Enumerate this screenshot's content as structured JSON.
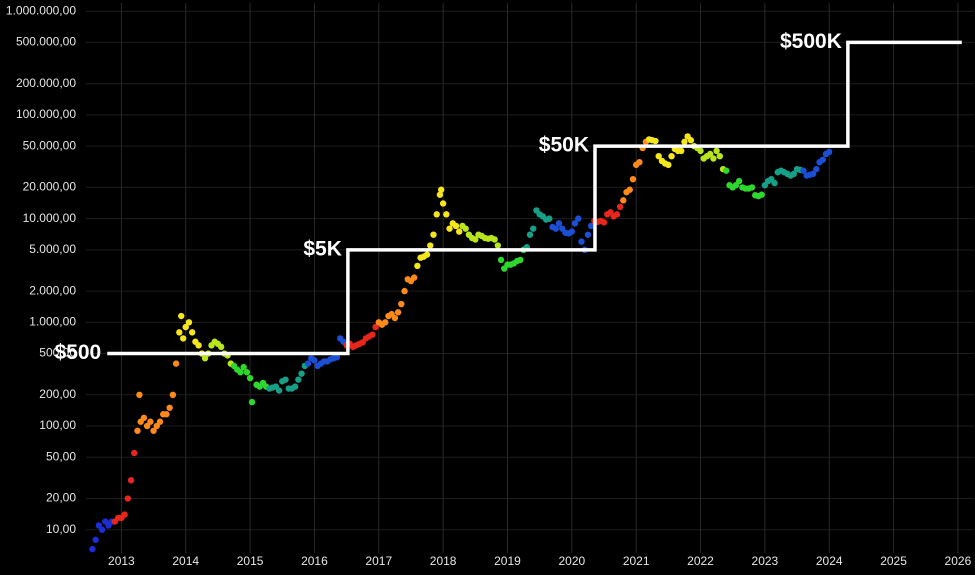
{
  "chart_data": {
    "type": "scatter",
    "log_y": true,
    "grid": true,
    "xlim": [
      2012.45,
      2026.25
    ],
    "xticks": [
      2013,
      2014,
      2015,
      2016,
      2017,
      2018,
      2019,
      2020,
      2021,
      2022,
      2023,
      2024,
      2025,
      2026
    ],
    "ylim": [
      4,
      1200000
    ],
    "yticks": [
      {
        "value": 10,
        "label": "10,00"
      },
      {
        "value": 20,
        "label": "20,00"
      },
      {
        "value": 50,
        "label": "50,00"
      },
      {
        "value": 100,
        "label": "100,00"
      },
      {
        "value": 200,
        "label": "200,00"
      },
      {
        "value": 500,
        "label": "500,00"
      },
      {
        "value": 1000,
        "label": "1.000,00"
      },
      {
        "value": 2000,
        "label": "2.000,00"
      },
      {
        "value": 5000,
        "label": "5.000,00"
      },
      {
        "value": 10000,
        "label": "10.000,00"
      },
      {
        "value": 20000,
        "label": "20.000,00"
      },
      {
        "value": 50000,
        "label": "50.000,00"
      },
      {
        "value": 100000,
        "label": "100.000,00"
      },
      {
        "value": 200000,
        "label": "200.000,00"
      },
      {
        "value": 500000,
        "label": "500.000,00"
      },
      {
        "value": 1000000,
        "label": "1.000.000,00"
      }
    ],
    "series": [
      {
        "color": "#1c2fd6",
        "x": [
          2012.55,
          2012.6,
          2012.65,
          2012.7,
          2012.75,
          2012.8,
          2012.85
        ],
        "values": [
          6.5,
          8,
          11,
          10,
          12,
          11,
          12
        ]
      },
      {
        "color": "#e8261c",
        "x": [
          2012.9,
          2012.95,
          2013.0,
          2013.05,
          2013.1,
          2013.15,
          2013.2
        ],
        "values": [
          12,
          13,
          13,
          14,
          20,
          30,
          55
        ]
      },
      {
        "color": "#ff8a1a",
        "x": [
          2013.25,
          2013.28,
          2013.3,
          2013.35,
          2013.4,
          2013.45,
          2013.5,
          2013.55,
          2013.6,
          2013.65,
          2013.7,
          2013.75,
          2013.8,
          2013.85
        ],
        "values": [
          90,
          200,
          110,
          120,
          100,
          110,
          90,
          100,
          110,
          130,
          130,
          150,
          200,
          400
        ]
      },
      {
        "color": "#f5e61c",
        "x": [
          2013.9,
          2013.93,
          2013.96,
          2014.0,
          2014.05,
          2014.1,
          2014.15,
          2014.2,
          2014.25
        ],
        "values": [
          800,
          1150,
          700,
          900,
          1000,
          800,
          650,
          600,
          500
        ]
      },
      {
        "color": "#b8e61c",
        "x": [
          2014.3,
          2014.35,
          2014.4,
          2014.45,
          2014.5,
          2014.55,
          2014.6,
          2014.65,
          2014.7
        ],
        "values": [
          450,
          500,
          600,
          650,
          620,
          580,
          500,
          480,
          400
        ]
      },
      {
        "color": "#2ed62e",
        "x": [
          2014.75,
          2014.8,
          2014.85,
          2014.9,
          2014.95,
          2015.0,
          2015.03,
          2015.1,
          2015.15,
          2015.2,
          2015.25
        ],
        "values": [
          380,
          350,
          330,
          370,
          330,
          290,
          170,
          250,
          240,
          260,
          240
        ]
      },
      {
        "color": "#17a088",
        "x": [
          2015.3,
          2015.35,
          2015.4,
          2015.45,
          2015.5,
          2015.55,
          2015.6,
          2015.65,
          2015.7,
          2015.75,
          2015.8,
          2015.85
        ],
        "values": [
          230,
          235,
          240,
          220,
          270,
          280,
          230,
          230,
          240,
          280,
          320,
          380
        ]
      },
      {
        "color": "#1c4fd6",
        "x": [
          2015.9,
          2015.95,
          2016.0,
          2016.05,
          2016.1,
          2016.15,
          2016.2,
          2016.25,
          2016.3,
          2016.35,
          2016.4,
          2016.45
        ],
        "values": [
          400,
          450,
          430,
          380,
          400,
          420,
          420,
          440,
          450,
          460,
          700,
          650
        ]
      },
      {
        "color": "#e8261c",
        "x": [
          2016.5,
          2016.55,
          2016.6,
          2016.65,
          2016.7,
          2016.75,
          2016.8,
          2016.85,
          2016.9,
          2016.95
        ],
        "values": [
          600,
          620,
          580,
          600,
          620,
          640,
          700,
          730,
          760,
          900
        ]
      },
      {
        "color": "#ff8a1a",
        "x": [
          2017.0,
          2017.05,
          2017.1,
          2017.15,
          2017.2,
          2017.25,
          2017.3,
          2017.35,
          2017.4,
          2017.45,
          2017.5,
          2017.55
        ],
        "values": [
          1000,
          950,
          1000,
          1150,
          1200,
          1100,
          1250,
          1500,
          2000,
          2600,
          2500,
          2700
        ]
      },
      {
        "color": "#f5e61c",
        "x": [
          2017.6,
          2017.65,
          2017.7,
          2017.75,
          2017.8,
          2017.85,
          2017.9,
          2017.95,
          2017.97,
          2018.0,
          2018.05,
          2018.1,
          2018.15,
          2018.2,
          2018.25
        ],
        "values": [
          3500,
          4200,
          4300,
          4500,
          5500,
          7000,
          11000,
          17000,
          19000,
          14000,
          11000,
          8000,
          9000,
          8500,
          7500
        ]
      },
      {
        "color": "#b8e61c",
        "x": [
          2018.3,
          2018.35,
          2018.4,
          2018.45,
          2018.5,
          2018.55,
          2018.6,
          2018.65,
          2018.7,
          2018.75,
          2018.8,
          2018.85
        ],
        "values": [
          8500,
          8000,
          7000,
          6500,
          6300,
          7000,
          6800,
          6500,
          6400,
          6500,
          6300,
          5500
        ]
      },
      {
        "color": "#2ed62e",
        "x": [
          2018.9,
          2018.95,
          2019.0,
          2019.05,
          2019.1,
          2019.15,
          2019.2,
          2019.25
        ],
        "values": [
          4000,
          3300,
          3600,
          3600,
          3700,
          3900,
          4000,
          5000
        ]
      },
      {
        "color": "#17a088",
        "x": [
          2019.3,
          2019.35,
          2019.4,
          2019.45,
          2019.5,
          2019.55,
          2019.6,
          2019.65
        ],
        "values": [
          5300,
          7000,
          8000,
          12000,
          11000,
          10500,
          9800,
          10000
        ]
      },
      {
        "color": "#1c4fd6",
        "x": [
          2019.7,
          2019.75,
          2019.8,
          2019.85,
          2019.9,
          2019.95,
          2020.0,
          2020.05,
          2020.1,
          2020.15,
          2020.2,
          2020.25,
          2020.3
        ],
        "values": [
          8300,
          8000,
          9000,
          8000,
          7300,
          7200,
          7500,
          9000,
          10000,
          6000,
          5000,
          7000,
          8500
        ]
      },
      {
        "color": "#e8261c",
        "x": [
          2020.35,
          2020.4,
          2020.45,
          2020.5,
          2020.55,
          2020.6,
          2020.65,
          2020.7,
          2020.75
        ],
        "values": [
          9500,
          9300,
          9500,
          9200,
          11000,
          11500,
          10500,
          11000,
          13000
        ]
      },
      {
        "color": "#ff8a1a",
        "x": [
          2020.8,
          2020.85,
          2020.9,
          2020.95,
          2021.0,
          2021.05,
          2021.1,
          2021.15
        ],
        "values": [
          15000,
          18000,
          19000,
          24000,
          33000,
          35000,
          48000,
          55000
        ]
      },
      {
        "color": "#f5e61c",
        "x": [
          2021.2,
          2021.25,
          2021.3,
          2021.35,
          2021.4,
          2021.45,
          2021.5,
          2021.55,
          2021.6,
          2021.65,
          2021.7,
          2021.75,
          2021.8,
          2021.85
        ],
        "values": [
          58000,
          57000,
          56000,
          40000,
          36000,
          34000,
          33000,
          40000,
          47000,
          45000,
          45000,
          55000,
          62000,
          57000
        ]
      },
      {
        "color": "#b8e61c",
        "x": [
          2021.9,
          2021.95,
          2022.0,
          2022.05,
          2022.1,
          2022.15,
          2022.2,
          2022.25,
          2022.3,
          2022.35
        ],
        "values": [
          50000,
          48000,
          45000,
          38000,
          40000,
          42000,
          38000,
          45000,
          40000,
          30000
        ]
      },
      {
        "color": "#2ed62e",
        "x": [
          2022.4,
          2022.45,
          2022.5,
          2022.55,
          2022.6,
          2022.65,
          2022.7,
          2022.75,
          2022.8,
          2022.85,
          2022.9,
          2022.95
        ],
        "values": [
          29000,
          21000,
          20000,
          21000,
          23000,
          20000,
          19500,
          19500,
          20000,
          16800,
          16500,
          17000
        ]
      },
      {
        "color": "#17a088",
        "x": [
          2023.0,
          2023.05,
          2023.1,
          2023.15,
          2023.2,
          2023.25,
          2023.3,
          2023.35,
          2023.4,
          2023.45,
          2023.5,
          2023.55
        ],
        "values": [
          21000,
          23000,
          24000,
          22000,
          28000,
          29000,
          28000,
          27000,
          26000,
          27000,
          30000,
          29500
        ]
      },
      {
        "color": "#1c4fd6",
        "x": [
          2023.6,
          2023.65,
          2023.7,
          2023.75,
          2023.8,
          2023.85,
          2023.9,
          2023.95,
          2024.0
        ],
        "values": [
          29000,
          26000,
          26500,
          27000,
          30000,
          35000,
          37000,
          42000,
          44000
        ]
      }
    ],
    "step_line": {
      "color": "#ffffff",
      "x": [
        2012.78,
        2016.52,
        2016.52,
        2020.36,
        2020.36,
        2024.29,
        2024.29,
        2026.06
      ],
      "values": [
        500,
        500,
        5000,
        5000,
        50000,
        50000,
        500000,
        500000
      ],
      "value_labels": [
        "$500",
        null,
        "$5K",
        null,
        "$50K",
        null,
        "$500K",
        null
      ]
    }
  }
}
